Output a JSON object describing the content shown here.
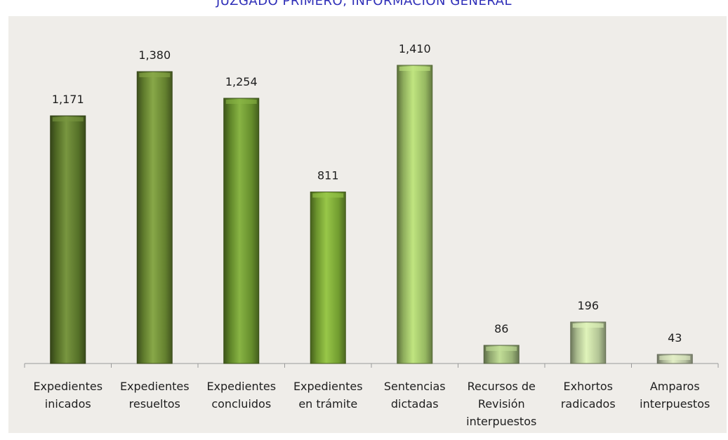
{
  "chart_data": {
    "type": "bar",
    "title": "JUZGADO PRIMERO, INFORMACIÓN GENERAL",
    "categories": [
      [
        "Expedientes",
        "inicados"
      ],
      [
        "Expedientes",
        "resueltos"
      ],
      [
        "Expedientes",
        "concluidos"
      ],
      [
        "Expedientes",
        "en trámite"
      ],
      [
        "Sentencias",
        "dictadas"
      ],
      [
        "Recursos de",
        "Revisión",
        "interpuestos"
      ],
      [
        "Exhortos",
        "radicados"
      ],
      [
        "Amparos",
        "interpuestos"
      ]
    ],
    "values": [
      1171,
      1380,
      1254,
      811,
      1410,
      86,
      196,
      43
    ],
    "data_labels": [
      "1,171",
      "1,380",
      "1,254",
      "811",
      "1,410",
      "86",
      "196",
      "43"
    ],
    "colors": [
      "#5f7d2c",
      "#6f8f34",
      "#6f9b30",
      "#7fae35",
      "#a7cc6c",
      "#a9c583",
      "#c7dba6",
      "#c9d5b2"
    ],
    "background": "#efede9",
    "ylim": [
      0,
      1410
    ],
    "grid": false,
    "legend": "none"
  }
}
